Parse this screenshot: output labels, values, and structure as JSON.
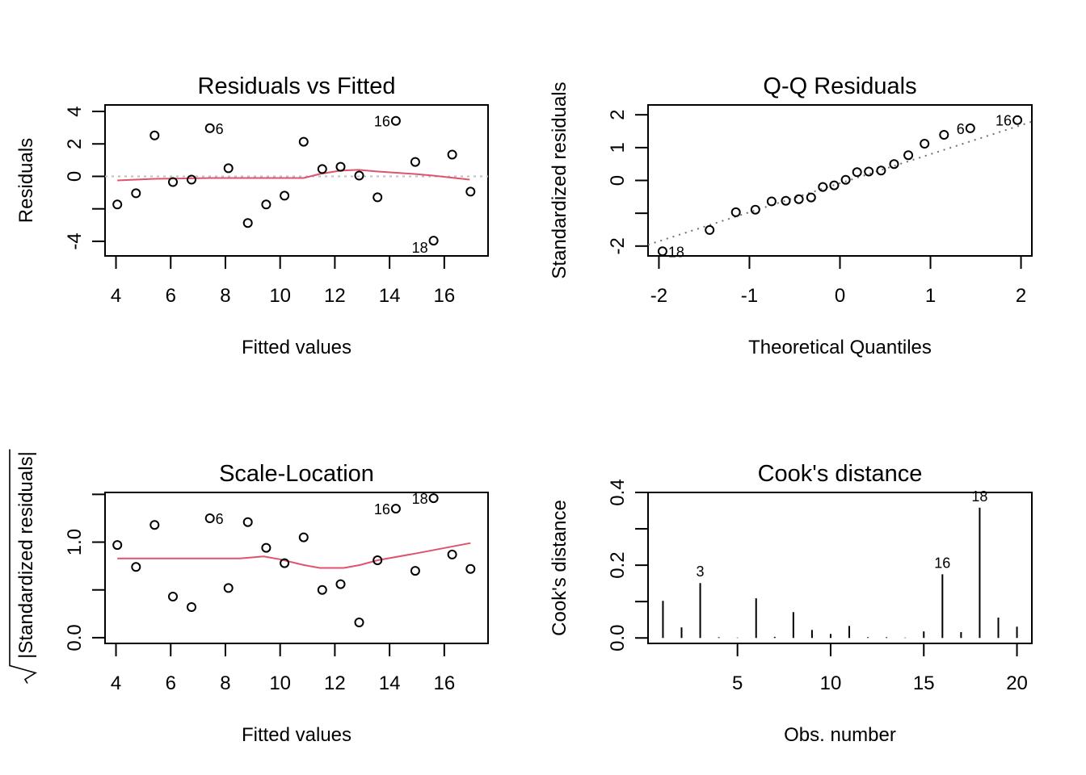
{
  "chart_data": [
    {
      "type": "scatter",
      "title": "Residuals vs Fitted",
      "xlabel": "Fitted values",
      "ylabel": "Residuals",
      "xlim": [
        3.6,
        17.6
      ],
      "ylim": [
        -4.9,
        4.4
      ],
      "xticks": [
        4,
        6,
        8,
        10,
        12,
        14,
        16
      ],
      "xtick_labels": [
        "4",
        "6",
        "8",
        "10",
        "12",
        "14",
        "16"
      ],
      "yticks": [
        -4,
        -2,
        0,
        2,
        4
      ],
      "ytick_labels": [
        "-4",
        "",
        "0",
        "2",
        "4"
      ],
      "x": [
        4.05,
        4.73,
        5.41,
        6.08,
        6.76,
        7.43,
        8.11,
        8.82,
        9.49,
        10.16,
        10.86,
        11.54,
        12.21,
        12.89,
        13.56,
        14.23,
        14.94,
        15.61,
        16.29,
        16.96
      ],
      "y": [
        -1.73,
        -1.04,
        2.52,
        -0.35,
        -0.2,
        2.97,
        0.5,
        -2.87,
        -1.73,
        -1.19,
        2.13,
        0.45,
        0.59,
        0.05,
        -1.29,
        3.42,
        0.89,
        -3.96,
        1.34,
        -0.94
      ],
      "point_labels": [
        {
          "index": 5,
          "text": "6",
          "side": "right"
        },
        {
          "index": 15,
          "text": "16",
          "side": "left"
        },
        {
          "index": 17,
          "text": "18",
          "side": "left-below"
        }
      ],
      "smooth": {
        "x": [
          4.05,
          4.73,
          5.41,
          7.43,
          8.11,
          10.86,
          11.45,
          12.19,
          12.86,
          13.53,
          14.91,
          15.58,
          16.93
        ],
        "y": [
          -0.25,
          -0.2,
          -0.15,
          -0.1,
          -0.1,
          -0.1,
          0.15,
          0.35,
          0.4,
          0.3,
          0.15,
          0.05,
          -0.2
        ]
      },
      "reference_line_y": 0,
      "colors": {
        "smooth": "#DF536B",
        "reference": "#BEBEBE",
        "points": "#000000"
      }
    },
    {
      "type": "scatter",
      "title": "Q-Q Residuals",
      "xlabel": "Theoretical Quantiles",
      "ylabel": "Standardized residuals",
      "xlim": [
        -2.12,
        2.12
      ],
      "ylim": [
        -2.3,
        2.3
      ],
      "xticks": [
        -2,
        -1,
        0,
        1,
        2
      ],
      "xtick_labels": [
        "-2",
        "-1",
        "0",
        "1",
        "2"
      ],
      "yticks": [
        -2,
        -1,
        0,
        1,
        2
      ],
      "ytick_labels": [
        "-2",
        "",
        "0",
        "1",
        "2"
      ],
      "x": [
        -1.96,
        -1.44,
        -1.15,
        -0.935,
        -0.755,
        -0.598,
        -0.454,
        -0.319,
        -0.189,
        -0.063,
        0.063,
        0.189,
        0.319,
        0.454,
        0.598,
        0.755,
        0.935,
        1.15,
        1.44,
        1.96
      ],
      "y": [
        -2.16,
        -1.51,
        -0.97,
        -0.89,
        -0.64,
        -0.62,
        -0.57,
        -0.52,
        -0.2,
        -0.15,
        0.02,
        0.25,
        0.27,
        0.3,
        0.5,
        0.77,
        1.12,
        1.39,
        1.59,
        1.84
      ],
      "point_labels": [
        {
          "index": 0,
          "text": "18",
          "side": "right"
        },
        {
          "index": 18,
          "text": "6",
          "side": "left"
        },
        {
          "index": 19,
          "text": "16",
          "side": "left"
        }
      ],
      "qqline": {
        "x": [
          -2.12,
          2.12
        ],
        "y": [
          -1.96,
          1.79
        ]
      },
      "colors": {
        "qqline": "#707070",
        "points": "#000000"
      }
    },
    {
      "type": "scatter",
      "title": "Scale-Location",
      "xlabel": "Fitted values",
      "ylabel": "|Standardized residuals|",
      "ylabel_prefix_symbol": "sqrt",
      "xlim": [
        3.6,
        17.6
      ],
      "ylim": [
        -0.06,
        1.52
      ],
      "xticks": [
        4,
        6,
        8,
        10,
        12,
        14,
        16
      ],
      "xtick_labels": [
        "4",
        "6",
        "8",
        "10",
        "12",
        "14",
        "16"
      ],
      "yticks": [
        0.0,
        0.5,
        1.0,
        1.5
      ],
      "ytick_labels": [
        "0.0",
        "",
        "1.0",
        ""
      ],
      "x": [
        4.05,
        4.73,
        5.41,
        6.08,
        6.76,
        7.43,
        8.11,
        8.82,
        9.49,
        10.16,
        10.86,
        11.54,
        12.21,
        12.89,
        13.56,
        14.23,
        14.94,
        15.61,
        16.29,
        16.96
      ],
      "y": [
        0.97,
        0.74,
        1.18,
        0.43,
        0.32,
        1.25,
        0.52,
        1.21,
        0.94,
        0.78,
        1.05,
        0.5,
        0.56,
        0.16,
        0.81,
        1.35,
        0.7,
        1.46,
        0.87,
        0.72
      ],
      "point_labels": [
        {
          "index": 5,
          "text": "6",
          "side": "right"
        },
        {
          "index": 15,
          "text": "16",
          "side": "left"
        },
        {
          "index": 17,
          "text": "18",
          "side": "left"
        }
      ],
      "smooth": {
        "x": [
          4.05,
          7.05,
          8.52,
          9.4,
          9.99,
          10.86,
          11.45,
          12.33,
          12.92,
          13.56,
          14.94,
          16.96
        ],
        "y": [
          0.83,
          0.83,
          0.83,
          0.85,
          0.82,
          0.76,
          0.73,
          0.73,
          0.76,
          0.81,
          0.88,
          0.99
        ]
      },
      "colors": {
        "smooth": "#DF536B",
        "points": "#000000"
      }
    },
    {
      "type": "bar",
      "title": "Cook's distance",
      "xlabel": "Obs. number",
      "ylabel": "Cook's distance",
      "xlim": [
        0.2,
        20.8
      ],
      "ylim": [
        -0.015,
        0.4
      ],
      "xticks": [
        5,
        10,
        15,
        20
      ],
      "xtick_labels": [
        "5",
        "10",
        "15",
        "20"
      ],
      "yticks": [
        0.0,
        0.1,
        0.2,
        0.3,
        0.4
      ],
      "ytick_labels": [
        "0.0",
        "",
        "0.2",
        "",
        "0.4"
      ],
      "categories": [
        1,
        2,
        3,
        4,
        5,
        6,
        7,
        8,
        9,
        10,
        11,
        12,
        13,
        14,
        15,
        16,
        17,
        18,
        19,
        20
      ],
      "values": [
        0.102,
        0.029,
        0.151,
        0.002,
        0.001,
        0.109,
        0.003,
        0.071,
        0.022,
        0.011,
        0.033,
        0.002,
        0.002,
        0.001,
        0.018,
        0.175,
        0.016,
        0.358,
        0.056,
        0.031
      ],
      "bar_labels": [
        {
          "index": 2,
          "text": "3"
        },
        {
          "index": 15,
          "text": "16"
        },
        {
          "index": 17,
          "text": "18"
        }
      ],
      "colors": {
        "bars": "#000000"
      }
    }
  ]
}
